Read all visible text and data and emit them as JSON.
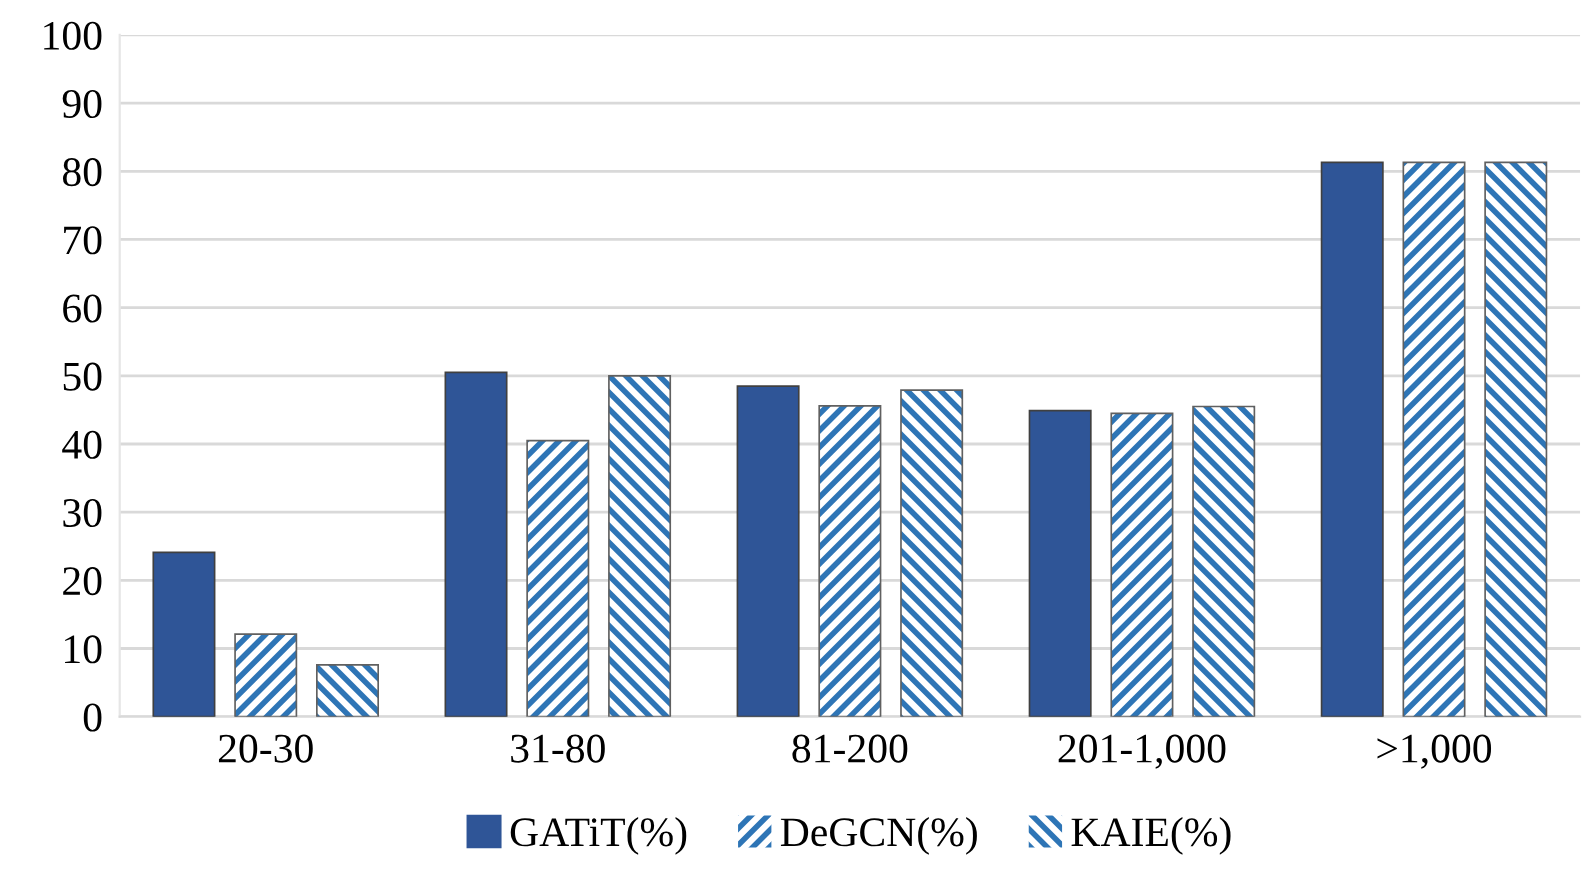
{
  "chart_data": {
    "type": "bar",
    "categories": [
      "20-30",
      "31-80",
      "81-200",
      "201-1,000",
      ">1,000"
    ],
    "series": [
      {
        "name": "GATiT(%)",
        "color": "#2f5597",
        "values": [
          24.1,
          50.5,
          48.5,
          44.9,
          81.3
        ]
      },
      {
        "name": "DeGCN(%)",
        "color": "#2e75b6",
        "values": [
          12.1,
          40.5,
          45.6,
          44.5,
          81.3
        ]
      },
      {
        "name": "KAIE(%)",
        "color": "#2e75b6",
        "values": [
          7.6,
          50.0,
          47.9,
          45.5,
          81.3
        ]
      }
    ],
    "ylim": [
      0,
      100
    ],
    "yticks": [
      0,
      10,
      20,
      30,
      40,
      50,
      60,
      70,
      80,
      90,
      100
    ],
    "grid": "y",
    "legend": "bottom"
  }
}
